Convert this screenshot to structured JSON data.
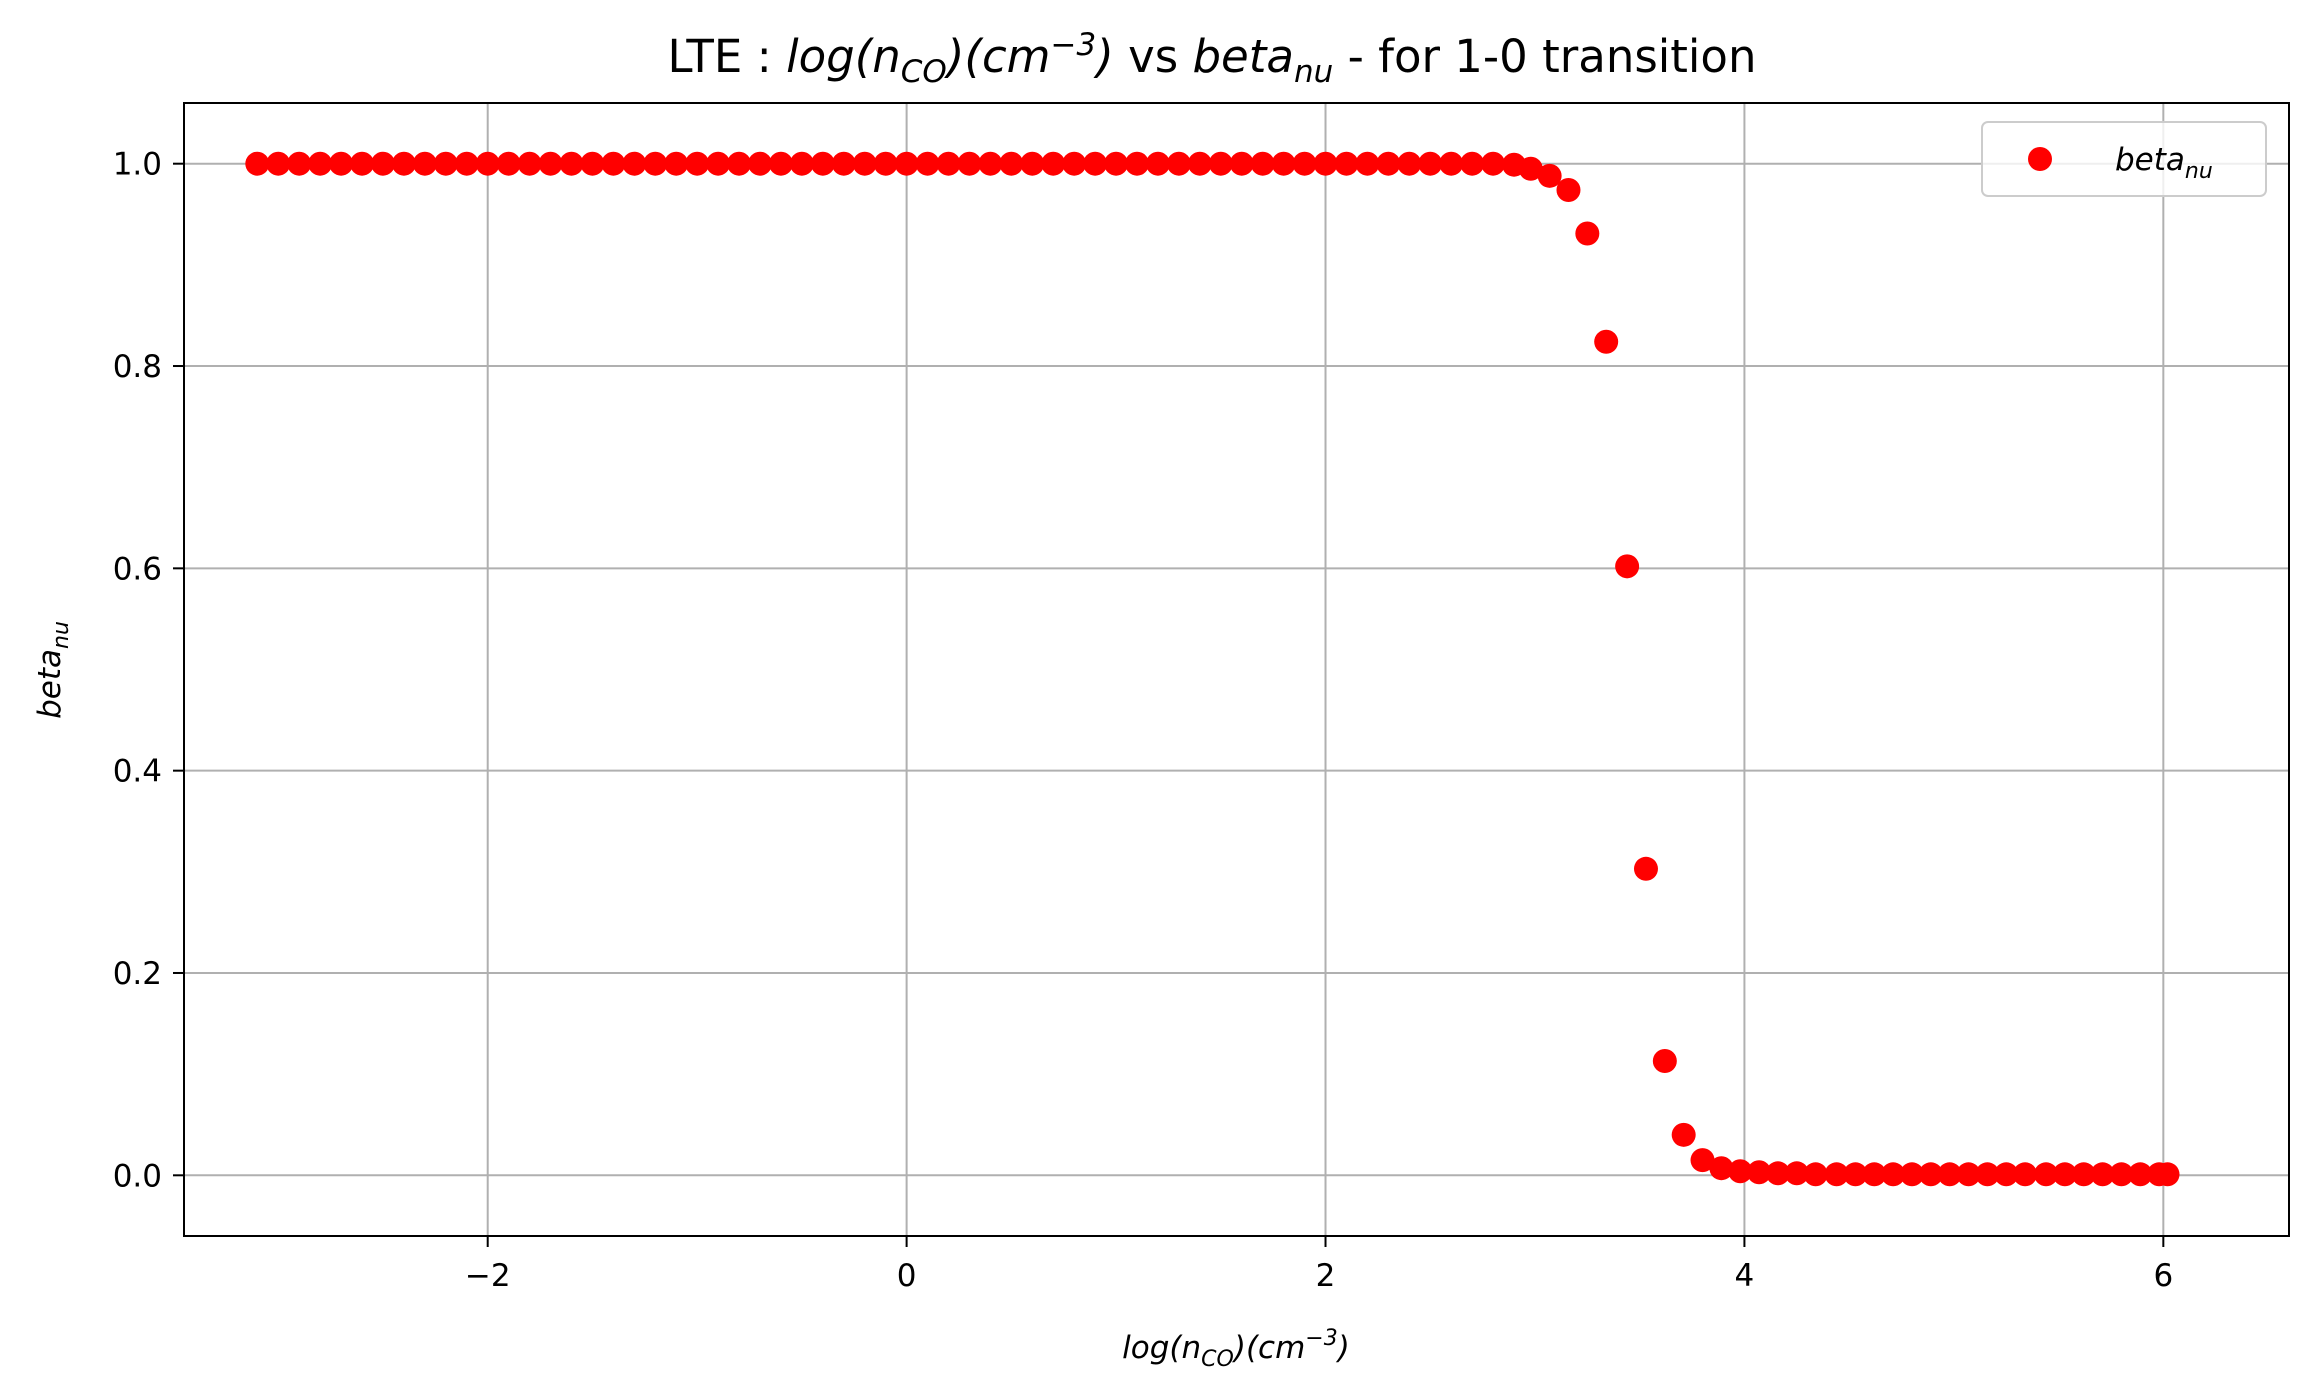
{
  "chart_data": {
    "type": "scatter",
    "title": {
      "prefix": "LTE : ",
      "expr_part1": "log",
      "expr_part2": "(n",
      "expr_sub": "CO",
      "expr_part3": ")(cm",
      "expr_sup": "−3",
      "expr_part4": ")",
      "mid": " vs ",
      "beta": "beta",
      "beta_sub": "nu",
      "suffix": " - for 1-0 transition"
    },
    "xlabel": {
      "part1": "log(n",
      "sub": "CO",
      "part2": ")(cm",
      "sup": "−3",
      "part3": ")"
    },
    "ylabel": {
      "main": "beta",
      "sub": "nu"
    },
    "xlim": [
      -3.45,
      6.6
    ],
    "ylim": [
      -0.06,
      1.06
    ],
    "xticks": [
      -2,
      0,
      2,
      4,
      6
    ],
    "xtick_labels": [
      "−2",
      "0",
      "2",
      "4",
      "6"
    ],
    "yticks": [
      0.0,
      0.2,
      0.4,
      0.6,
      0.8,
      1.0
    ],
    "ytick_labels": [
      "0.0",
      "0.2",
      "0.4",
      "0.6",
      "0.8",
      "1.0"
    ],
    "grid": true,
    "legend": {
      "placement": "top-right",
      "label_main": "beta",
      "label_sub": "nu"
    },
    "series": [
      {
        "name": "beta_nu",
        "color": "#ff0000",
        "x": [
          -3.1,
          -3.0,
          -2.9,
          -2.8,
          -2.7,
          -2.6,
          -2.5,
          -2.4,
          -2.3,
          -2.2,
          -2.1,
          -2.0,
          -1.9,
          -1.8,
          -1.7,
          -1.6,
          -1.5,
          -1.4,
          -1.3,
          -1.2,
          -1.1,
          -1.0,
          -0.9,
          -0.8,
          -0.7,
          -0.6,
          -0.5,
          -0.4,
          -0.3,
          -0.2,
          -0.1,
          0.0,
          0.1,
          0.2,
          0.3,
          0.4,
          0.5,
          0.6,
          0.7,
          0.8,
          0.9,
          1.0,
          1.1,
          1.2,
          1.3,
          1.4,
          1.5,
          1.6,
          1.7,
          1.8,
          1.9,
          2.0,
          2.1,
          2.2,
          2.3,
          2.4,
          2.5,
          2.6,
          2.7,
          2.8,
          2.9,
          2.98,
          3.07,
          3.16,
          3.25,
          3.34,
          3.44,
          3.53,
          3.62,
          3.71,
          3.8,
          3.89,
          3.98,
          4.07,
          4.16,
          4.25,
          4.34,
          4.44,
          4.53,
          4.62,
          4.71,
          4.8,
          4.89,
          4.98,
          5.07,
          5.16,
          5.25,
          5.34,
          5.44,
          5.53,
          5.62,
          5.71,
          5.8,
          5.89,
          5.98,
          6.02
        ],
        "y": [
          1.0,
          1.0,
          1.0,
          1.0,
          1.0,
          1.0,
          1.0,
          1.0,
          1.0,
          1.0,
          1.0,
          1.0,
          1.0,
          1.0,
          1.0,
          1.0,
          1.0,
          1.0,
          1.0,
          1.0,
          1.0,
          1.0,
          1.0,
          1.0,
          1.0,
          1.0,
          1.0,
          1.0,
          1.0,
          1.0,
          1.0,
          1.0,
          1.0,
          1.0,
          1.0,
          1.0,
          1.0,
          1.0,
          1.0,
          1.0,
          1.0,
          1.0,
          1.0,
          1.0,
          1.0,
          1.0,
          1.0,
          1.0,
          1.0,
          1.0,
          1.0,
          1.0,
          1.0,
          1.0,
          1.0,
          1.0,
          1.0,
          1.0,
          1.0,
          1.0,
          0.999,
          0.995,
          0.988,
          0.974,
          0.931,
          0.824,
          0.602,
          0.303,
          0.113,
          0.04,
          0.015,
          0.007,
          0.004,
          0.003,
          0.002,
          0.002,
          0.001,
          0.001,
          0.001,
          0.001,
          0.001,
          0.001,
          0.001,
          0.001,
          0.001,
          0.001,
          0.001,
          0.001,
          0.001,
          0.001,
          0.001,
          0.001,
          0.001,
          0.001,
          0.001,
          0.001
        ]
      }
    ]
  }
}
